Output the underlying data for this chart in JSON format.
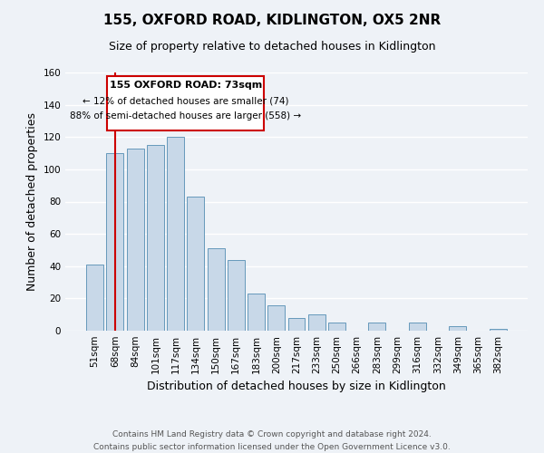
{
  "title": "155, OXFORD ROAD, KIDLINGTON, OX5 2NR",
  "subtitle": "Size of property relative to detached houses in Kidlington",
  "xlabel": "Distribution of detached houses by size in Kidlington",
  "ylabel": "Number of detached properties",
  "bar_labels": [
    "51sqm",
    "68sqm",
    "84sqm",
    "101sqm",
    "117sqm",
    "134sqm",
    "150sqm",
    "167sqm",
    "183sqm",
    "200sqm",
    "217sqm",
    "233sqm",
    "250sqm",
    "266sqm",
    "283sqm",
    "299sqm",
    "316sqm",
    "332sqm",
    "349sqm",
    "365sqm",
    "382sqm"
  ],
  "bar_values": [
    41,
    110,
    113,
    115,
    120,
    83,
    51,
    44,
    23,
    16,
    8,
    10,
    5,
    0,
    5,
    0,
    5,
    0,
    3,
    0,
    1
  ],
  "bar_color": "#c8d8e8",
  "bar_edge_color": "#6699bb",
  "annotation_box_title": "155 OXFORD ROAD: 73sqm",
  "annotation_line1": "← 12% of detached houses are smaller (74)",
  "annotation_line2": "88% of semi-detached houses are larger (558) →",
  "annotation_box_color": "#ffffff",
  "annotation_box_edge_color": "#cc0000",
  "marker_line_color": "#cc0000",
  "marker_line_index": 1,
  "ylim": [
    0,
    160
  ],
  "yticks": [
    0,
    20,
    40,
    60,
    80,
    100,
    120,
    140,
    160
  ],
  "background_color": "#eef2f7",
  "grid_color": "#ffffff",
  "title_fontsize": 11,
  "subtitle_fontsize": 9,
  "axis_label_fontsize": 9,
  "tick_fontsize": 7.5,
  "footer_fontsize": 6.5,
  "footer_line1": "Contains HM Land Registry data © Crown copyright and database right 2024.",
  "footer_line2": "Contains public sector information licensed under the Open Government Licence v3.0."
}
